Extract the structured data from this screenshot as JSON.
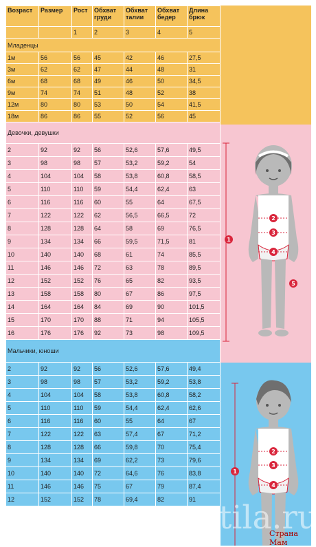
{
  "header": {
    "cols": [
      "Возраст",
      "Размер",
      "Рост",
      "Обхват груди",
      "Обхват талии",
      "Обхват бедер",
      "Длина брюк"
    ],
    "nums": [
      "",
      "",
      "1",
      "2",
      "3",
      "4",
      "5"
    ]
  },
  "sections": {
    "infants": {
      "title": "Младенцы",
      "rows": [
        [
          "1м",
          "56",
          "56",
          "45",
          "42",
          "46",
          "27,5"
        ],
        [
          "3м",
          "62",
          "62",
          "47",
          "44",
          "48",
          "31"
        ],
        [
          "6м",
          "68",
          "68",
          "49",
          "46",
          "50",
          "34,5"
        ],
        [
          "9м",
          "74",
          "74",
          "51",
          "48",
          "52",
          "38"
        ],
        [
          "12м",
          "80",
          "80",
          "53",
          "50",
          "54",
          "41,5"
        ],
        [
          "18м",
          "86",
          "86",
          "55",
          "52",
          "56",
          "45"
        ]
      ]
    },
    "girls": {
      "title": "Девочки, девушки",
      "rows": [
        [
          "2",
          "92",
          "92",
          "56",
          "52,6",
          "57,6",
          "49,5"
        ],
        [
          "3",
          "98",
          "98",
          "57",
          "53,2",
          "59,2",
          "54"
        ],
        [
          "4",
          "104",
          "104",
          "58",
          "53,8",
          "60,8",
          "58,5"
        ],
        [
          "5",
          "110",
          "110",
          "59",
          "54,4",
          "62,4",
          "63"
        ],
        [
          "6",
          "116",
          "116",
          "60",
          "55",
          "64",
          "67,5"
        ],
        [
          "7",
          "122",
          "122",
          "62",
          "56,5",
          "66,5",
          "72"
        ],
        [
          "8",
          "128",
          "128",
          "64",
          "58",
          "69",
          "76,5"
        ],
        [
          "9",
          "134",
          "134",
          "66",
          "59,5",
          "71,5",
          "81"
        ],
        [
          "10",
          "140",
          "140",
          "68",
          "61",
          "74",
          "85,5"
        ],
        [
          "11",
          "146",
          "146",
          "72",
          "63",
          "78",
          "89,5"
        ],
        [
          "12",
          "152",
          "152",
          "76",
          "65",
          "82",
          "93,5"
        ],
        [
          "13",
          "158",
          "158",
          "80",
          "67",
          "86",
          "97,5"
        ],
        [
          "14",
          "164",
          "164",
          "84",
          "69",
          "90",
          "101,5"
        ],
        [
          "15",
          "170",
          "170",
          "88",
          "71",
          "94",
          "105,5"
        ],
        [
          "16",
          "176",
          "176",
          "92",
          "73",
          "98",
          "109,5"
        ]
      ]
    },
    "boys": {
      "title": "Мальчики, юноши",
      "rows": [
        [
          "2",
          "92",
          "92",
          "56",
          "52,6",
          "57,6",
          "49,4"
        ],
        [
          "3",
          "98",
          "98",
          "57",
          "53,2",
          "59,2",
          "53,8"
        ],
        [
          "4",
          "104",
          "104",
          "58",
          "53,8",
          "60,8",
          "58,2"
        ],
        [
          "5",
          "110",
          "110",
          "59",
          "54,4",
          "62,4",
          "62,6"
        ],
        [
          "6",
          "116",
          "116",
          "60",
          "55",
          "64",
          "67"
        ],
        [
          "7",
          "122",
          "122",
          "63",
          "57,4",
          "67",
          "71,2"
        ],
        [
          "8",
          "128",
          "128",
          "66",
          "59,8",
          "70",
          "75,4"
        ],
        [
          "9",
          "134",
          "134",
          "69",
          "62,2",
          "73",
          "79,6"
        ],
        [
          "10",
          "140",
          "140",
          "72",
          "64,6",
          "76",
          "83,8"
        ],
        [
          "11",
          "146",
          "146",
          "75",
          "67",
          "79",
          "87,4"
        ],
        [
          "12",
          "152",
          "152",
          "78",
          "69,4",
          "82",
          "91"
        ]
      ]
    }
  },
  "figure_labels": [
    "1",
    "2",
    "3",
    "4",
    "5"
  ],
  "watermark": {
    "main": "postila.ru",
    "sub": "Страна Мам"
  },
  "colors": {
    "infants": "#f5c35c",
    "girls": "#f7c6d1",
    "boys": "#78c8ee",
    "marker": "#d9263c"
  }
}
